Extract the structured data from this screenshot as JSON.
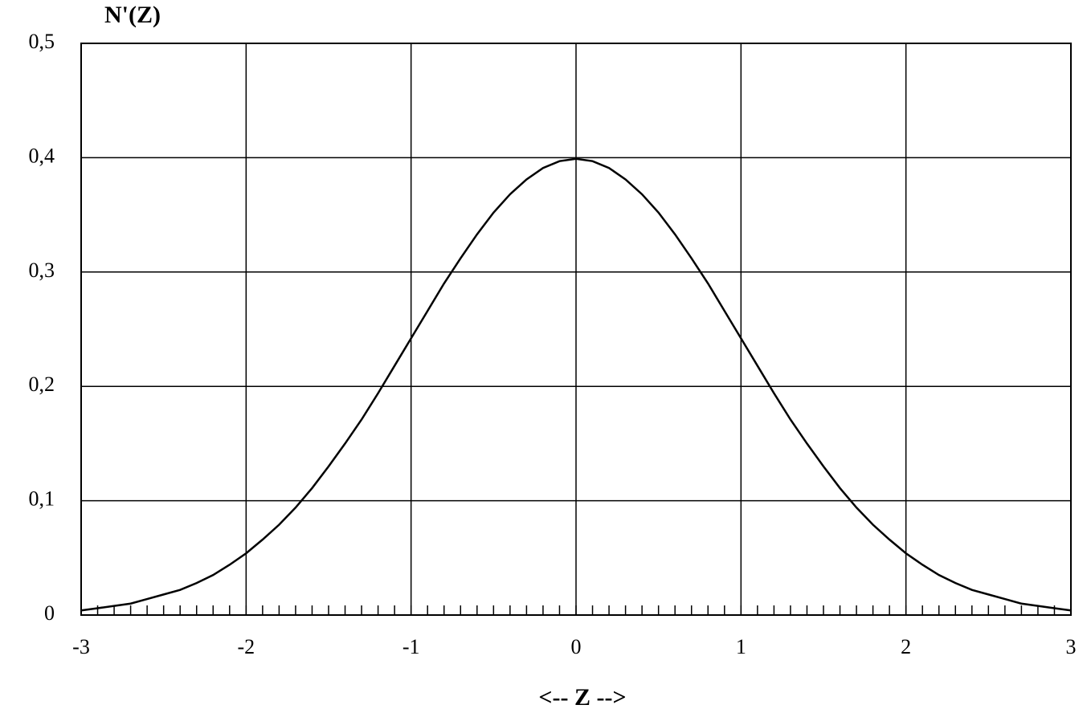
{
  "chart_data": {
    "type": "line",
    "title": "N'(Z)",
    "x_label": "<-- Z -->",
    "x": [
      -3,
      -2.9,
      -2.8,
      -2.7,
      -2.6,
      -2.5,
      -2.4,
      -2.3,
      -2.2,
      -2.1,
      -2,
      -1.9,
      -1.8,
      -1.7,
      -1.6,
      -1.5,
      -1.4,
      -1.3,
      -1.2,
      -1.1,
      -1,
      -0.9,
      -0.8,
      -0.7,
      -0.6,
      -0.5,
      -0.4,
      -0.3,
      -0.2,
      -0.1,
      0,
      0.1,
      0.2,
      0.3,
      0.4,
      0.5,
      0.6,
      0.7,
      0.8,
      0.9,
      1,
      1.1,
      1.2,
      1.3,
      1.4,
      1.5,
      1.6,
      1.7,
      1.8,
      1.9,
      2,
      2.1,
      2.2,
      2.3,
      2.4,
      2.5,
      2.6,
      2.7,
      2.8,
      2.9,
      3
    ],
    "series": [
      {
        "color": "#000000",
        "values": [
          0.004,
          0.006,
          0.008,
          0.01,
          0.014,
          0.018,
          0.022,
          0.028,
          0.035,
          0.044,
          0.054,
          0.066,
          0.079,
          0.094,
          0.111,
          0.13,
          0.15,
          0.171,
          0.194,
          0.218,
          0.242,
          0.266,
          0.29,
          0.312,
          0.333,
          0.352,
          0.368,
          0.381,
          0.391,
          0.397,
          0.399,
          0.397,
          0.391,
          0.381,
          0.368,
          0.352,
          0.333,
          0.312,
          0.29,
          0.266,
          0.242,
          0.218,
          0.194,
          0.171,
          0.15,
          0.13,
          0.111,
          0.094,
          0.079,
          0.066,
          0.054,
          0.044,
          0.035,
          0.028,
          0.022,
          0.018,
          0.014,
          0.01,
          0.008,
          0.006,
          0.004
        ]
      }
    ],
    "xlim": [
      -3,
      3
    ],
    "xticks": [
      -3,
      -2,
      -1,
      0,
      1,
      2,
      3
    ],
    "xminorticks": [
      -3,
      -2.9,
      -2.8,
      -2.7,
      -2.6,
      -2.5,
      -2.4,
      -2.3,
      -2.2,
      -2.1,
      -2,
      -1.9,
      -1.8,
      -1.7,
      -1.6,
      -1.5,
      -1.4,
      -1.3,
      -1.2,
      -1.1,
      -1,
      -0.9,
      -0.8,
      -0.7,
      -0.6,
      -0.5,
      -0.4,
      -0.3,
      -0.2,
      -0.1,
      0,
      0.1,
      0.2,
      0.3,
      0.4,
      0.5,
      0.6,
      0.7,
      0.8,
      0.9,
      1,
      1.1,
      1.2,
      1.3,
      1.4,
      1.5,
      1.6,
      1.7,
      1.8,
      1.9,
      2,
      2.1,
      2.2,
      2.3,
      2.4,
      2.5,
      2.6,
      2.7,
      2.8,
      2.9,
      3
    ],
    "ylim": [
      0,
      0.5
    ],
    "yticks": [
      0,
      {
        "value": 0.1,
        "label": "0,1"
      },
      {
        "value": 0.2,
        "label": "0,2"
      },
      {
        "value": 0.3,
        "label": "0,3"
      },
      {
        "value": 0.4,
        "label": "0,4"
      },
      {
        "value": 0.5,
        "label": "0,5"
      }
    ],
    "grid": true
  }
}
